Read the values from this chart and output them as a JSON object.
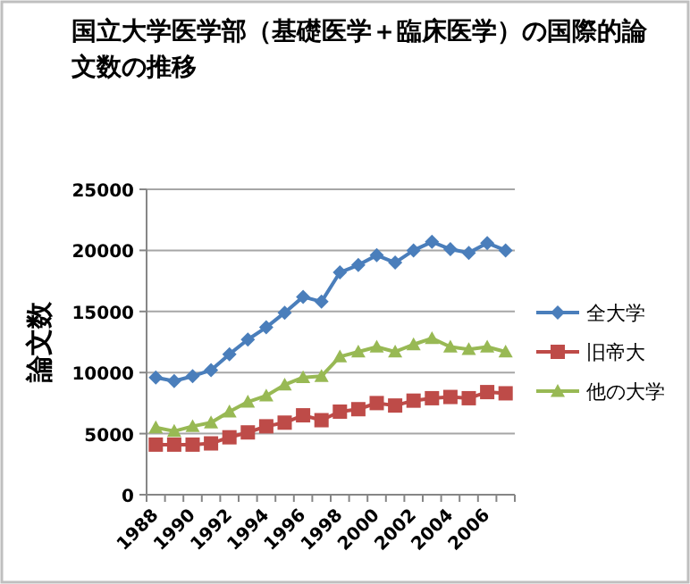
{
  "chart_data": {
    "type": "line",
    "title": "国立大学医学部（基礎医学＋臨床医学）の国際的論文数の推移",
    "ylabel": "論文数",
    "categories": [
      "1988",
      null,
      "1990",
      null,
      "1992",
      null,
      "1994",
      null,
      "1996",
      null,
      "1998",
      null,
      "2000",
      null,
      "2002",
      null,
      "2004",
      null,
      "2006",
      null
    ],
    "series": [
      {
        "name": "全大学",
        "color": "#4a7ebb",
        "marker": "diamond",
        "values": [
          9600,
          9300,
          9700,
          10200,
          11500,
          12700,
          13700,
          14900,
          16200,
          15800,
          18200,
          18800,
          19600,
          19000,
          20000,
          20700,
          20100,
          19800,
          20600,
          20000
        ]
      },
      {
        "name": "旧帝大",
        "color": "#be4b48",
        "marker": "square",
        "values": [
          4100,
          4100,
          4100,
          4200,
          4700,
          5100,
          5600,
          5900,
          6500,
          6100,
          6800,
          7000,
          7500,
          7300,
          7700,
          7900,
          8000,
          7900,
          8400,
          8300
        ]
      },
      {
        "name": "他の大学",
        "color": "#98b954",
        "marker": "triangle",
        "values": [
          5500,
          5200,
          5600,
          5900,
          6800,
          7600,
          8100,
          9000,
          9600,
          9700,
          11300,
          11700,
          12100,
          11700,
          12300,
          12800,
          12100,
          11900,
          12100,
          11700
        ]
      }
    ],
    "ylim": [
      0,
      25000
    ],
    "yticks": [
      0,
      5000,
      10000,
      15000,
      20000,
      25000
    ],
    "grid": "y",
    "legend": "right"
  }
}
